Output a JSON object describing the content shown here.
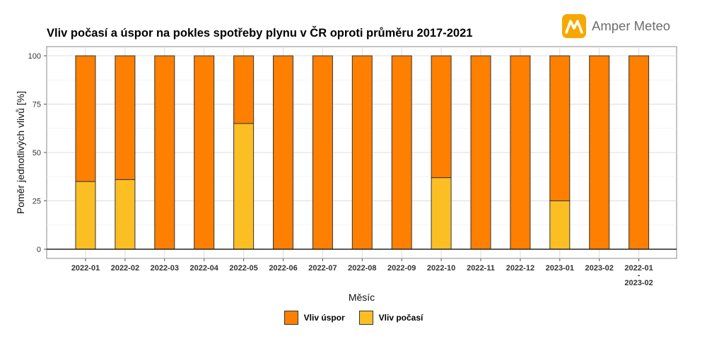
{
  "header": {
    "title": "Vliv počasí a úspor na pokles spotřeby plynu v ČR oproti průměru 2017-2021",
    "brand_name": "Amper Meteo"
  },
  "chart_data": {
    "type": "bar",
    "stacked": true,
    "title": "Vliv počasí a úspor na pokles spotřeby plynu v ČR oproti průměru 2017-2021",
    "xlabel": "Měsíc",
    "ylabel": "Poměr jednotlivých vlivů [%]",
    "ylim": [
      0,
      100
    ],
    "yticks": [
      0,
      25,
      50,
      75,
      100
    ],
    "grid": true,
    "legend_position": "bottom",
    "categories": [
      "2022-01",
      "2022-02",
      "2022-03",
      "2022-04",
      "2022-05",
      "2022-06",
      "2022-07",
      "2022-08",
      "2022-09",
      "2022-10",
      "2022-11",
      "2022-12",
      "2023-01",
      "2023-02",
      "2022-01\n-\n2023-02"
    ],
    "series": [
      {
        "name": "Vliv počasí",
        "color": "#fbbf24",
        "values": [
          35,
          36,
          0,
          0,
          65,
          0,
          0,
          0,
          0,
          37,
          0,
          0,
          25,
          0,
          0
        ]
      },
      {
        "name": "Vliv úspor",
        "color": "#ff7f00",
        "values": [
          65,
          64,
          100,
          100,
          35,
          100,
          100,
          100,
          100,
          63,
          100,
          100,
          75,
          100,
          100
        ]
      }
    ]
  },
  "legend": {
    "items": [
      {
        "label": "Vliv úspor",
        "color": "#ff7f00"
      },
      {
        "label": "Vliv počasí",
        "color": "#fbbf24"
      }
    ]
  }
}
